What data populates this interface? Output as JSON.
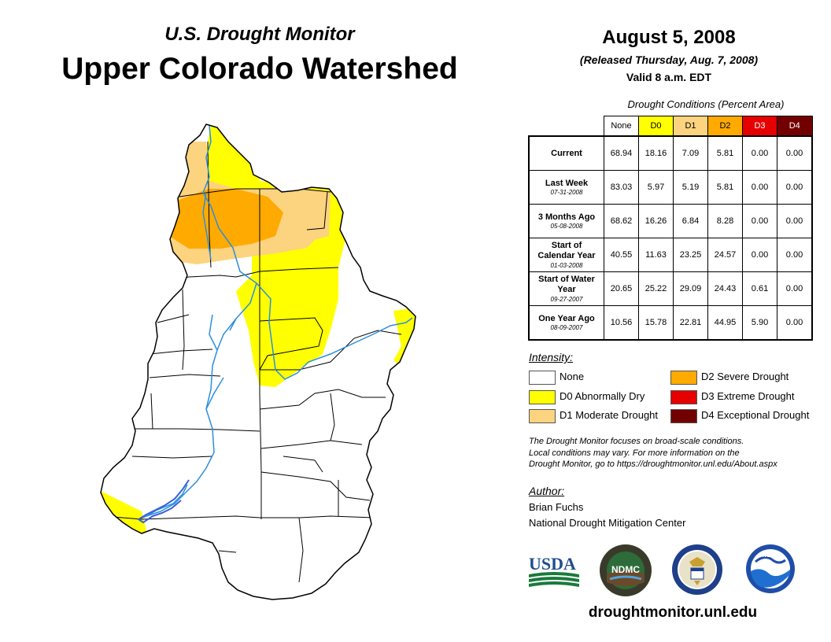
{
  "header": {
    "sup_title": "U.S. Drought Monitor",
    "main_title": "Upper Colorado Watershed",
    "date": "August 5, 2008",
    "released": "(Released Thursday, Aug. 7, 2008)",
    "valid": "Valid 8 a.m. EDT"
  },
  "table": {
    "caption": "Drought Conditions (Percent Area)",
    "columns": [
      {
        "label": "None",
        "color": "#ffffff",
        "text_color": "#000000"
      },
      {
        "label": "D0",
        "color": "#ffff00",
        "text_color": "#000000"
      },
      {
        "label": "D1",
        "color": "#fcd37f",
        "text_color": "#000000"
      },
      {
        "label": "D2",
        "color": "#ffaa00",
        "text_color": "#000000"
      },
      {
        "label": "D3",
        "color": "#e60000",
        "text_color": "#ffffff"
      },
      {
        "label": "D4",
        "color": "#730000",
        "text_color": "#ffffff"
      }
    ],
    "rows": [
      {
        "label": "Current",
        "date": "",
        "values": [
          "68.94",
          "18.16",
          "7.09",
          "5.81",
          "0.00",
          "0.00"
        ]
      },
      {
        "label": "Last Week",
        "date": "07-31-2008",
        "values": [
          "83.03",
          "5.97",
          "5.19",
          "5.81",
          "0.00",
          "0.00"
        ]
      },
      {
        "label": "3 Months Ago",
        "date": "05-08-2008",
        "values": [
          "68.62",
          "16.26",
          "6.84",
          "8.28",
          "0.00",
          "0.00"
        ]
      },
      {
        "label": "Start of Calendar Year",
        "date": "01-03-2008",
        "values": [
          "40.55",
          "11.63",
          "23.25",
          "24.57",
          "0.00",
          "0.00"
        ]
      },
      {
        "label": "Start of Water Year",
        "date": "09-27-2007",
        "values": [
          "20.65",
          "25.22",
          "29.09",
          "24.43",
          "0.61",
          "0.00"
        ]
      },
      {
        "label": "One Year Ago",
        "date": "08-09-2007",
        "values": [
          "10.56",
          "15.78",
          "22.81",
          "44.95",
          "5.90",
          "0.00"
        ]
      }
    ]
  },
  "legend": {
    "title": "Intensity:",
    "items": [
      {
        "label": "None",
        "color": "#ffffff"
      },
      {
        "label": "D0 Abnormally Dry",
        "color": "#ffff00"
      },
      {
        "label": "D1 Moderate Drought",
        "color": "#fcd37f"
      },
      {
        "label": "D2 Severe Drought",
        "color": "#ffaa00"
      },
      {
        "label": "D3 Extreme Drought",
        "color": "#e60000"
      },
      {
        "label": "D4 Exceptional Drought",
        "color": "#730000"
      }
    ]
  },
  "disclaimer": {
    "line1": "The Drought Monitor focuses on broad-scale conditions.",
    "line2": "Local conditions may vary. For more information on the",
    "line3": "Drought Monitor, go to https://droughtmonitor.unl.edu/About.aspx"
  },
  "author": {
    "title": "Author:",
    "name": "Brian Fuchs",
    "org": "National Drought Mitigation Center"
  },
  "logos": {
    "usda": "USDA",
    "ndmc": "NDMC",
    "noaa": "NOAA"
  },
  "footer": {
    "url": "droughtmonitor.unl.edu"
  },
  "map_colors": {
    "none": "#ffffff",
    "d0": "#ffff00",
    "d1": "#fcd37f",
    "d2": "#ffaa00",
    "river": "#2b8fe0",
    "border": "#000000"
  }
}
